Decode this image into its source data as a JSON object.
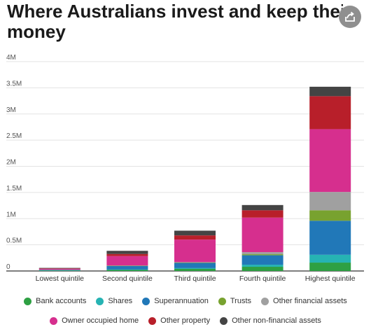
{
  "page": {
    "title_line1": "Where Australians invest and keep their",
    "title_line2": "money",
    "share_icon": "share-icon"
  },
  "chart_data": {
    "type": "bar",
    "stacked": true,
    "title": "Where Australians invest and keep their money",
    "xlabel": "",
    "ylabel": "",
    "ylim": [
      0,
      4000000
    ],
    "yticks": [
      0,
      500000,
      1000000,
      1500000,
      2000000,
      2500000,
      3000000,
      3500000,
      4000000
    ],
    "ytick_labels": [
      "0",
      "0.5M",
      "1M",
      "1.5M",
      "2M",
      "2.5M",
      "3M",
      "3.5M",
      "4M"
    ],
    "grid": true,
    "legend_position": "bottom",
    "categories": [
      "Lowest quintile",
      "Second quintile",
      "Third quintile",
      "Fourth quintile",
      "Highest quintile"
    ],
    "series": [
      {
        "name": "Bank accounts",
        "color": "#2ea043",
        "values": [
          10000,
          20000,
          40000,
          80000,
          160000
        ]
      },
      {
        "name": "Shares",
        "color": "#26b3b3",
        "values": [
          2000,
          8000,
          15000,
          40000,
          150000
        ]
      },
      {
        "name": "Superannuation",
        "color": "#2178b8",
        "values": [
          10000,
          70000,
          100000,
          180000,
          650000
        ]
      },
      {
        "name": "Trusts",
        "color": "#78a22f",
        "values": [
          0,
          2000,
          5000,
          20000,
          200000
        ]
      },
      {
        "name": "Other financial assets",
        "color": "#a0a0a0",
        "values": [
          2000,
          5000,
          10000,
          40000,
          350000
        ]
      },
      {
        "name": "Owner occupied home",
        "color": "#d62f8e",
        "values": [
          20000,
          180000,
          430000,
          660000,
          1200000
        ]
      },
      {
        "name": "Other property",
        "color": "#b81f2a",
        "values": [
          5000,
          40000,
          80000,
          140000,
          630000
        ]
      },
      {
        "name": "Other non-financial assets",
        "color": "#444444",
        "values": [
          10000,
          60000,
          90000,
          100000,
          180000
        ]
      }
    ]
  }
}
